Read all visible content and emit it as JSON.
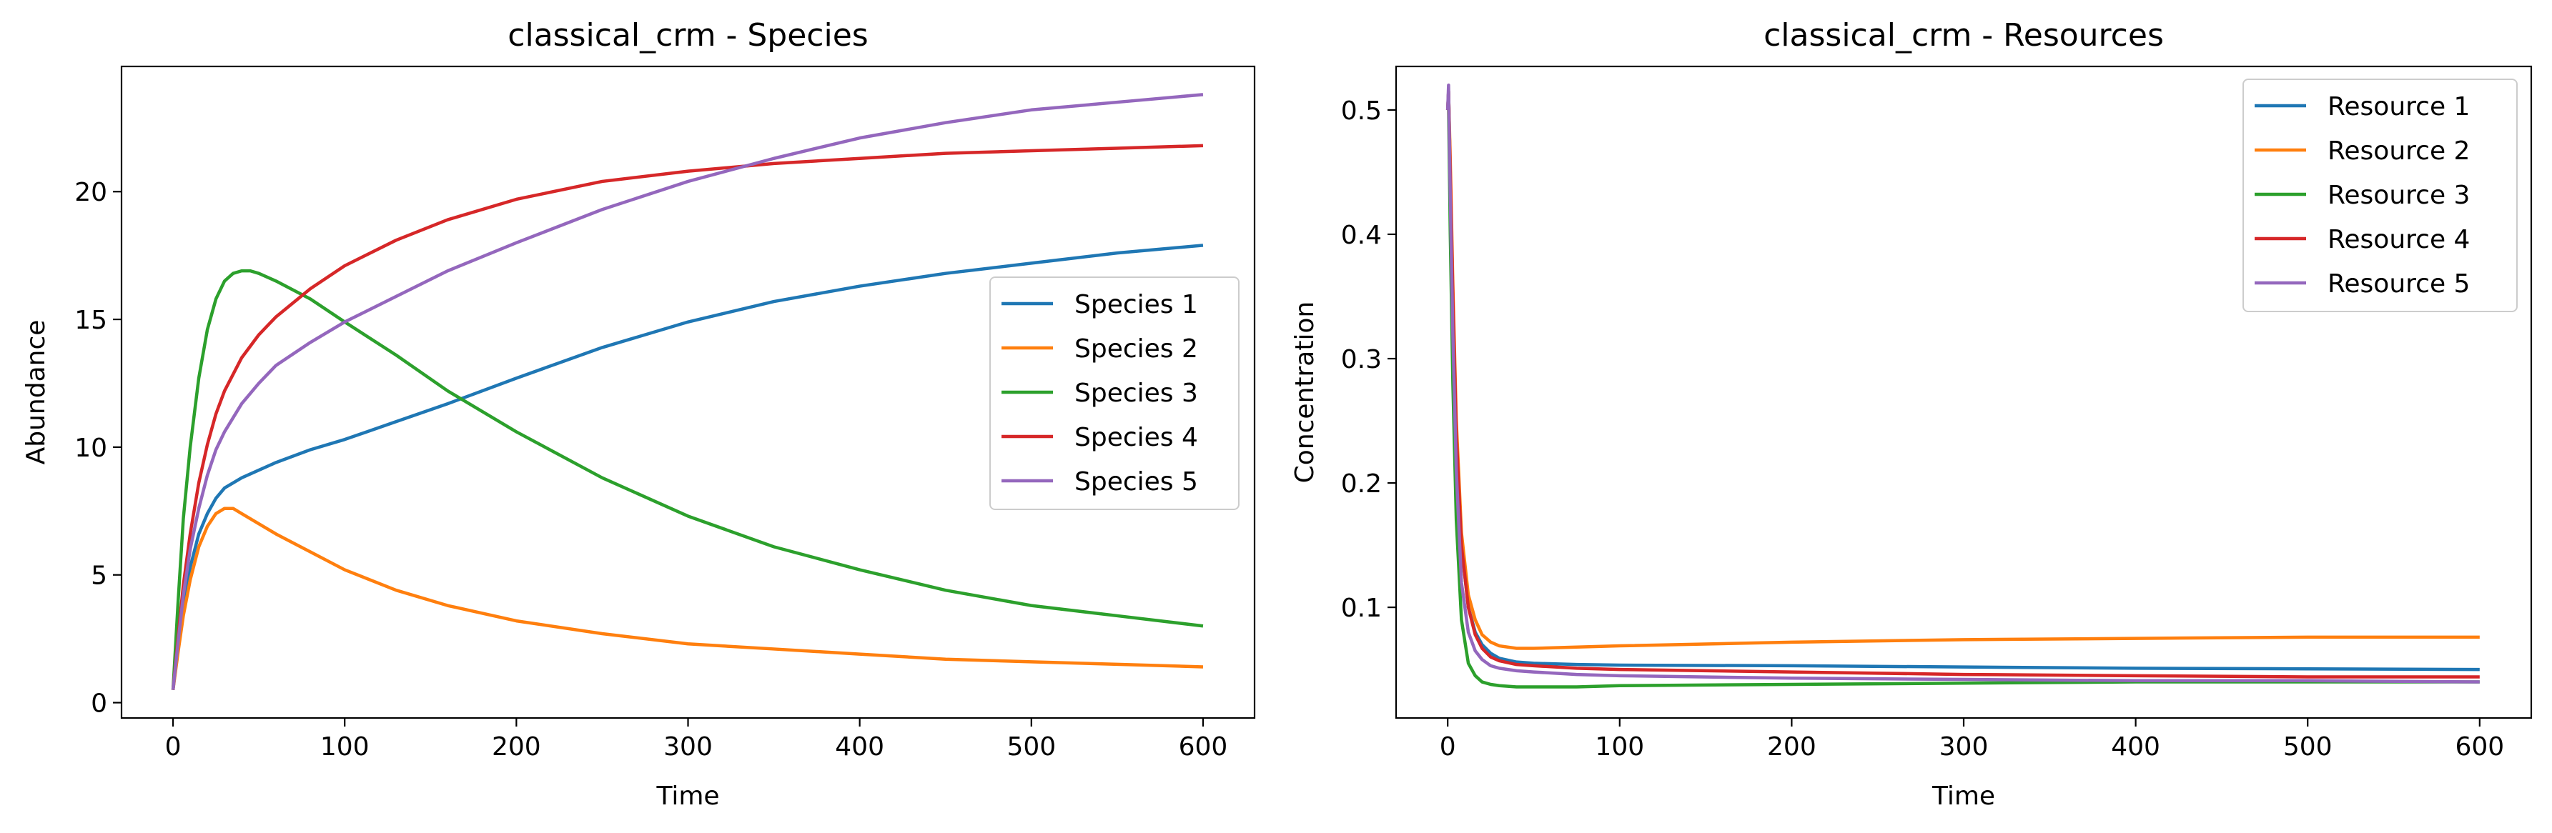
{
  "chart_data": [
    {
      "type": "line",
      "title": "classical_crm - Species",
      "xlabel": "Time",
      "ylabel": "Abundance",
      "xlim": [
        -30,
        630
      ],
      "ylim": [
        -0.6,
        24.9
      ],
      "xticks": [
        0,
        100,
        200,
        300,
        400,
        500,
        600
      ],
      "yticks": [
        0,
        5,
        10,
        15,
        20
      ],
      "grid": false,
      "legend_location": "center-right",
      "series": [
        {
          "name": "Species 1",
          "color": "#1f77b4",
          "x": [
            0,
            3,
            6,
            10,
            15,
            20,
            25,
            30,
            40,
            50,
            60,
            80,
            100,
            130,
            160,
            200,
            250,
            300,
            350,
            400,
            450,
            500,
            550,
            600
          ],
          "y": [
            0.5,
            2.2,
            3.8,
            5.3,
            6.6,
            7.4,
            8.0,
            8.4,
            8.8,
            9.1,
            9.4,
            9.9,
            10.3,
            11.0,
            11.7,
            12.7,
            13.9,
            14.9,
            15.7,
            16.3,
            16.8,
            17.2,
            17.6,
            17.9
          ]
        },
        {
          "name": "Species 2",
          "color": "#ff7f0e",
          "x": [
            0,
            3,
            6,
            10,
            15,
            20,
            25,
            30,
            35,
            40,
            50,
            60,
            80,
            100,
            130,
            160,
            200,
            250,
            300,
            350,
            400,
            450,
            500,
            550,
            600
          ],
          "y": [
            0.5,
            2.0,
            3.4,
            4.8,
            6.1,
            6.9,
            7.4,
            7.6,
            7.6,
            7.4,
            7.0,
            6.6,
            5.9,
            5.2,
            4.4,
            3.8,
            3.2,
            2.7,
            2.3,
            2.1,
            1.9,
            1.7,
            1.6,
            1.5,
            1.4
          ]
        },
        {
          "name": "Species 3",
          "color": "#2ca02c",
          "x": [
            0,
            3,
            6,
            10,
            15,
            20,
            25,
            30,
            35,
            40,
            45,
            50,
            60,
            80,
            100,
            130,
            160,
            200,
            250,
            300,
            350,
            400,
            450,
            500,
            550,
            600
          ],
          "y": [
            0.5,
            4.0,
            7.2,
            10.0,
            12.7,
            14.6,
            15.8,
            16.5,
            16.8,
            16.9,
            16.9,
            16.8,
            16.5,
            15.8,
            14.9,
            13.6,
            12.2,
            10.6,
            8.8,
            7.3,
            6.1,
            5.2,
            4.4,
            3.8,
            3.4,
            3.0
          ]
        },
        {
          "name": "Species 4",
          "color": "#d62728",
          "x": [
            0,
            3,
            6,
            10,
            15,
            20,
            25,
            30,
            40,
            50,
            60,
            80,
            100,
            130,
            160,
            200,
            250,
            300,
            350,
            400,
            450,
            500,
            550,
            600
          ],
          "y": [
            0.5,
            2.6,
            4.6,
            6.6,
            8.6,
            10.1,
            11.3,
            12.2,
            13.5,
            14.4,
            15.1,
            16.2,
            17.1,
            18.1,
            18.9,
            19.7,
            20.4,
            20.8,
            21.1,
            21.3,
            21.5,
            21.6,
            21.7,
            21.8
          ]
        },
        {
          "name": "Species 5",
          "color": "#9467bd",
          "x": [
            0,
            3,
            6,
            10,
            15,
            20,
            25,
            30,
            40,
            50,
            60,
            80,
            100,
            130,
            160,
            200,
            250,
            300,
            350,
            400,
            450,
            500,
            550,
            600
          ],
          "y": [
            0.5,
            2.4,
            4.2,
            6.0,
            7.6,
            8.9,
            9.9,
            10.6,
            11.7,
            12.5,
            13.2,
            14.1,
            14.9,
            15.9,
            16.9,
            18.0,
            19.3,
            20.4,
            21.3,
            22.1,
            22.7,
            23.2,
            23.5,
            23.8
          ]
        }
      ]
    },
    {
      "type": "line",
      "title": "classical_crm - Resources",
      "xlabel": "Time",
      "ylabel": "Concentration",
      "xlim": [
        -30,
        630
      ],
      "ylim": [
        0.011,
        0.535
      ],
      "xticks": [
        0,
        100,
        200,
        300,
        400,
        500,
        600
      ],
      "yticks": [
        0.1,
        0.2,
        0.3,
        0.4,
        0.5
      ],
      "ytick_labels": [
        "0.1",
        "0.2",
        "0.3",
        "0.4",
        "0.5"
      ],
      "grid": false,
      "legend_location": "upper-right",
      "series": [
        {
          "name": "Resource 1",
          "color": "#1f77b4",
          "x": [
            0,
            0.5,
            1.5,
            3,
            5,
            8,
            12,
            16,
            20,
            25,
            30,
            40,
            50,
            75,
            100,
            200,
            300,
            400,
            500,
            600
          ],
          "y": [
            0.5,
            0.515,
            0.45,
            0.35,
            0.24,
            0.15,
            0.1,
            0.08,
            0.07,
            0.063,
            0.059,
            0.056,
            0.055,
            0.054,
            0.0535,
            0.053,
            0.052,
            0.051,
            0.0505,
            0.05
          ]
        },
        {
          "name": "Resource 2",
          "color": "#ff7f0e",
          "x": [
            0,
            0.5,
            1.5,
            3,
            5,
            8,
            12,
            16,
            20,
            25,
            30,
            40,
            50,
            75,
            100,
            200,
            300,
            400,
            500,
            600
          ],
          "y": [
            0.5,
            0.515,
            0.46,
            0.36,
            0.25,
            0.16,
            0.11,
            0.09,
            0.078,
            0.072,
            0.069,
            0.067,
            0.067,
            0.068,
            0.069,
            0.072,
            0.074,
            0.075,
            0.076,
            0.076
          ]
        },
        {
          "name": "Resource 3",
          "color": "#2ca02c",
          "x": [
            0,
            0.5,
            1.5,
            3,
            5,
            8,
            12,
            16,
            20,
            25,
            30,
            40,
            50,
            75,
            100,
            200,
            300,
            400,
            500,
            600
          ],
          "y": [
            0.5,
            0.505,
            0.4,
            0.28,
            0.17,
            0.09,
            0.055,
            0.045,
            0.04,
            0.038,
            0.037,
            0.036,
            0.036,
            0.036,
            0.037,
            0.038,
            0.039,
            0.04,
            0.04,
            0.04
          ]
        },
        {
          "name": "Resource 4",
          "color": "#d62728",
          "x": [
            0,
            0.5,
            1.5,
            3,
            5,
            8,
            12,
            16,
            20,
            25,
            30,
            40,
            50,
            75,
            100,
            200,
            300,
            400,
            500,
            600
          ],
          "y": [
            0.5,
            0.515,
            0.45,
            0.35,
            0.24,
            0.15,
            0.1,
            0.078,
            0.067,
            0.06,
            0.057,
            0.054,
            0.053,
            0.051,
            0.05,
            0.048,
            0.046,
            0.045,
            0.044,
            0.044
          ]
        },
        {
          "name": "Resource 5",
          "color": "#9467bd",
          "x": [
            0,
            0.5,
            1.5,
            3,
            5,
            8,
            12,
            16,
            20,
            25,
            30,
            40,
            50,
            75,
            100,
            200,
            300,
            400,
            500,
            600
          ],
          "y": [
            0.5,
            0.52,
            0.43,
            0.32,
            0.21,
            0.12,
            0.08,
            0.065,
            0.058,
            0.053,
            0.051,
            0.049,
            0.048,
            0.046,
            0.045,
            0.043,
            0.042,
            0.041,
            0.041,
            0.04
          ]
        }
      ]
    }
  ]
}
